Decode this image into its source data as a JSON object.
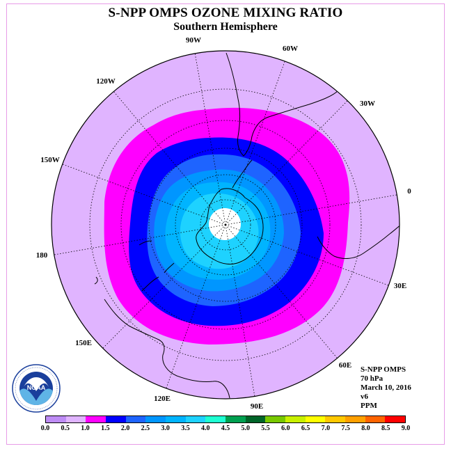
{
  "title": "S-NPP OMPS OZONE MIXING RATIO",
  "subtitle": "Southern Hemisphere",
  "longitude_labels": [
    "90W",
    "60W",
    "30W",
    "0",
    "30E",
    "60E",
    "90E",
    "120E",
    "150E",
    "180",
    "150W",
    "120W"
  ],
  "info": {
    "instrument": "S-NPP OMPS",
    "level": "70 hPa",
    "date": "March 10, 2016",
    "version": "v6",
    "units": "PPM"
  },
  "logo": {
    "name": "noaa-logo",
    "text": "NOAA"
  },
  "colorbar": {
    "ticks": [
      "0.0",
      "0.5",
      "1.0",
      "1.5",
      "2.0",
      "2.5",
      "3.0",
      "3.5",
      "4.0",
      "4.5",
      "5.0",
      "5.5",
      "6.0",
      "6.5",
      "7.0",
      "7.5",
      "8.0",
      "8.5",
      "9.0"
    ],
    "colors": [
      "#be8cf5",
      "#e0b4ff",
      "#ff00ff",
      "#0000ff",
      "#1e64ff",
      "#0096ff",
      "#00b4ff",
      "#1ed2ff",
      "#1effd2",
      "#00a050",
      "#006428",
      "#78c800",
      "#c8f000",
      "#ffff00",
      "#ffc800",
      "#ffa000",
      "#ff6400",
      "#ff0000",
      "#8c5028"
    ]
  },
  "map": {
    "projection": "polar stereographic, south pole",
    "field_colors": {
      "outer": "#e0b4ff",
      "ring_1_0": "#ff00ff",
      "ring_1_5": "#0000ff",
      "ring_2_0": "#1e64ff",
      "ring_2_5": "#0096ff",
      "ring_3_0": "#00b4ff",
      "ring_3_5": "#1ed2ff",
      "pole_missing": "#ffffff"
    }
  }
}
